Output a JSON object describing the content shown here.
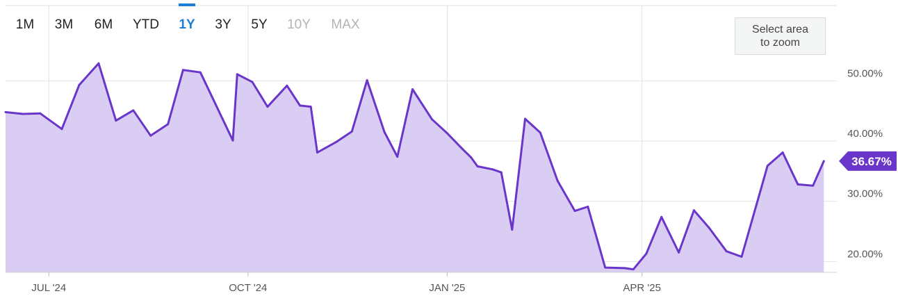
{
  "range_selector": {
    "options": [
      "1M",
      "3M",
      "6M",
      "YTD",
      "1Y",
      "3Y",
      "5Y",
      "10Y",
      "MAX"
    ],
    "selected": "1Y",
    "disabled": [
      "10Y",
      "MAX"
    ]
  },
  "zoom_hint": {
    "label": "Select area\nto zoom"
  },
  "colors": {
    "line": "#6a35c9",
    "fill": "#d9cdf3",
    "accent": "#1a7fd6",
    "grid": "#e2e2e2",
    "badge": "#6a35c9"
  },
  "chart_data": {
    "type": "area",
    "title": "",
    "xlabel": "",
    "ylabel": "",
    "x_ticks": [
      "JUL '24",
      "OCT '24",
      "JAN '25",
      "APR '25"
    ],
    "x_tick_dates": [
      "2024-07-01",
      "2024-10-01",
      "2025-01-01",
      "2025-04-01"
    ],
    "y_ticks": [
      "20.00%",
      "30.00%",
      "40.00%",
      "50.00%"
    ],
    "y_tick_values": [
      20,
      30,
      40,
      50
    ],
    "ylim": [
      18.2,
      62.5
    ],
    "xlim": [
      "2024-06-11",
      "2025-06-30"
    ],
    "grid": true,
    "last_value_label": "36.67%",
    "series": [
      {
        "points": [
          [
            "2024-06-11",
            44.8
          ],
          [
            "2024-06-19",
            44.5
          ],
          [
            "2024-06-27",
            44.6
          ],
          [
            "2024-07-07",
            42.0
          ],
          [
            "2024-07-15",
            49.3
          ],
          [
            "2024-07-24",
            52.9
          ],
          [
            "2024-08-01",
            43.4
          ],
          [
            "2024-08-09",
            45.1
          ],
          [
            "2024-08-17",
            40.9
          ],
          [
            "2024-08-25",
            42.8
          ],
          [
            "2024-09-01",
            51.8
          ],
          [
            "2024-09-09",
            51.4
          ],
          [
            "2024-09-24",
            40.1
          ],
          [
            "2024-09-26",
            51.1
          ],
          [
            "2024-10-03",
            49.8
          ],
          [
            "2024-10-10",
            45.7
          ],
          [
            "2024-10-19",
            49.2
          ],
          [
            "2024-10-25",
            45.9
          ],
          [
            "2024-10-30",
            45.7
          ],
          [
            "2024-11-02",
            38.1
          ],
          [
            "2024-11-11",
            39.9
          ],
          [
            "2024-11-18",
            41.6
          ],
          [
            "2024-11-25",
            50.1
          ],
          [
            "2024-12-03",
            41.5
          ],
          [
            "2024-12-09",
            37.4
          ],
          [
            "2024-12-16",
            48.6
          ],
          [
            "2024-12-25",
            43.6
          ],
          [
            "2025-01-01",
            41.3
          ],
          [
            "2025-01-08",
            38.7
          ],
          [
            "2025-01-12",
            37.3
          ],
          [
            "2025-01-15",
            35.8
          ],
          [
            "2025-01-22",
            35.3
          ],
          [
            "2025-01-26",
            34.8
          ],
          [
            "2025-01-31",
            25.3
          ],
          [
            "2025-02-06",
            43.7
          ],
          [
            "2025-02-13",
            41.4
          ],
          [
            "2025-02-21",
            33.4
          ],
          [
            "2025-03-01",
            28.4
          ],
          [
            "2025-03-07",
            29.1
          ],
          [
            "2025-03-15",
            19.0
          ],
          [
            "2025-03-24",
            18.9
          ],
          [
            "2025-03-28",
            18.7
          ],
          [
            "2025-04-03",
            21.3
          ],
          [
            "2025-04-10",
            27.4
          ],
          [
            "2025-04-18",
            21.5
          ],
          [
            "2025-04-25",
            28.5
          ],
          [
            "2025-05-02",
            25.6
          ],
          [
            "2025-05-10",
            21.7
          ],
          [
            "2025-05-17",
            20.8
          ],
          [
            "2025-05-24",
            29.6
          ],
          [
            "2025-05-29",
            35.9
          ],
          [
            "2025-06-05",
            38.1
          ],
          [
            "2025-06-12",
            32.8
          ],
          [
            "2025-06-19",
            32.6
          ],
          [
            "2025-06-24",
            36.67
          ]
        ]
      }
    ]
  }
}
